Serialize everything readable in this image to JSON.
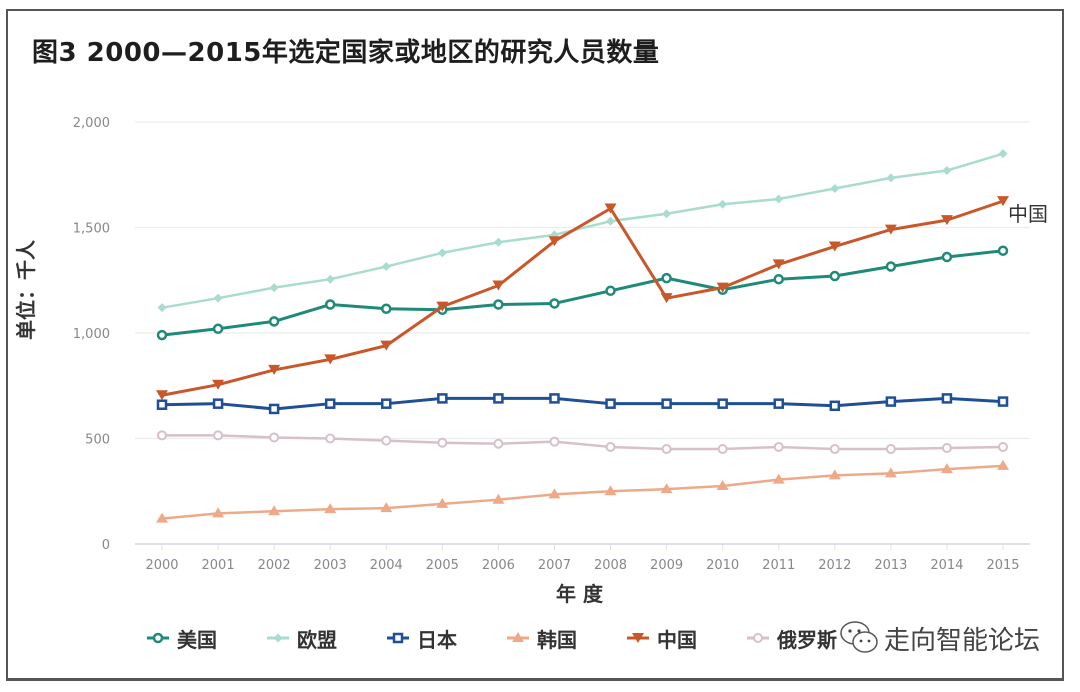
{
  "chart_data": {
    "type": "line",
    "title": "图3   2000—2015年选定国家或地区的研究人员数量",
    "xlabel": "年 度",
    "ylabel": "单位：千人",
    "ylim": [
      0,
      2000
    ],
    "yticks": [
      0,
      500,
      1000,
      1500,
      2000
    ],
    "ytick_labels": [
      "0",
      "500",
      "1,000",
      "1,500",
      "2,000"
    ],
    "grid": true,
    "legend_position": "bottom",
    "x": [
      "2000",
      "2001",
      "2002",
      "2003",
      "2004",
      "2005",
      "2006",
      "2007",
      "2008",
      "2009",
      "2010",
      "2011",
      "2012",
      "2013",
      "2014",
      "2015"
    ],
    "series": [
      {
        "name": "美国",
        "color": "#1f8a7a",
        "marker": "circle",
        "values": [
          990,
          1020,
          1055,
          1135,
          1115,
          1110,
          1135,
          1140,
          1200,
          1260,
          1205,
          1255,
          1270,
          1315,
          1360,
          1390
        ]
      },
      {
        "name": "欧盟",
        "color": "#a9dccf",
        "marker": "diamond",
        "values": [
          1120,
          1165,
          1215,
          1255,
          1315,
          1380,
          1430,
          1465,
          1530,
          1565,
          1610,
          1635,
          1685,
          1735,
          1770,
          1850
        ]
      },
      {
        "name": "日本",
        "color": "#1f4f95",
        "marker": "square",
        "values": [
          660,
          665,
          640,
          665,
          665,
          690,
          690,
          690,
          665,
          665,
          665,
          665,
          655,
          675,
          690,
          675
        ]
      },
      {
        "name": "韩国",
        "color": "#eeaa88",
        "marker": "triangle-up",
        "values": [
          120,
          145,
          155,
          165,
          170,
          190,
          210,
          235,
          250,
          260,
          275,
          305,
          325,
          335,
          355,
          370
        ]
      },
      {
        "name": "中国",
        "color": "#c8582a",
        "marker": "triangle-down",
        "values": [
          705,
          755,
          825,
          875,
          940,
          1125,
          1225,
          1435,
          1590,
          1165,
          1215,
          1325,
          1410,
          1490,
          1535,
          1625
        ]
      },
      {
        "name": "俄罗斯",
        "color": "#d7c0cc",
        "marker": "circle-open",
        "values": [
          515,
          515,
          505,
          500,
          490,
          480,
          475,
          485,
          460,
          450,
          450,
          460,
          450,
          450,
          455,
          460
        ]
      }
    ],
    "annotations": [
      {
        "text": "中国",
        "series": "中国",
        "at": "2015"
      }
    ]
  },
  "watermark": {
    "text": "走向智能论坛",
    "icon": "wechat-icon"
  }
}
